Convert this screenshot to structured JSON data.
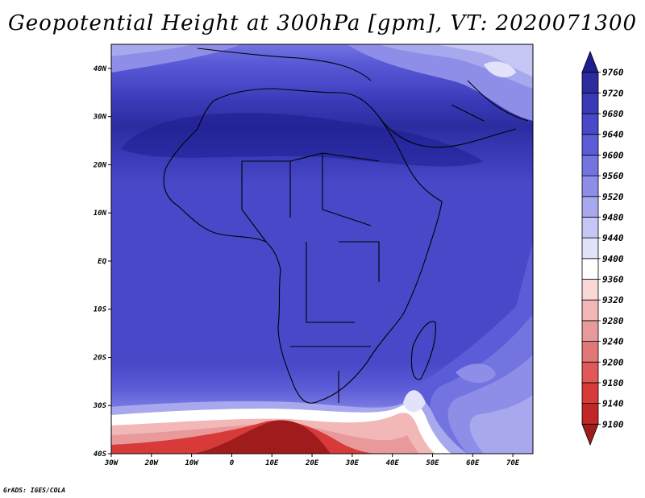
{
  "title": "Geopotential Height at 300hPa [gpm], VT: 2020071300",
  "credit": "GrADS: IGES/COLA",
  "map": {
    "lon_labels": [
      "30W",
      "20W",
      "10W",
      "0",
      "10E",
      "20E",
      "30E",
      "40E",
      "50E",
      "60E",
      "70E"
    ],
    "lat_labels": [
      "40S",
      "30S",
      "20S",
      "10S",
      "EQ",
      "10N",
      "20N",
      "30N",
      "40N"
    ],
    "lon_range": [
      -30,
      75
    ],
    "lat_range": [
      -40,
      45
    ]
  },
  "colorbar": {
    "unit": "gpm",
    "levels": [
      9100,
      9140,
      9180,
      9200,
      9240,
      9280,
      9320,
      9360,
      9400,
      9440,
      9480,
      9520,
      9560,
      9600,
      9640,
      9680,
      9720,
      9760
    ],
    "colors": [
      "#a01c1c",
      "#c02828",
      "#d83a3a",
      "#e05858",
      "#e07878",
      "#e89a9a",
      "#f2b8b8",
      "#fad8d8",
      "#ffffff",
      "#e2e2fa",
      "#c6c6f4",
      "#a8a8ee",
      "#8e8ee8",
      "#7474e0",
      "#5c5cd8",
      "#4848c8",
      "#3a3ab8",
      "#2c2ca0",
      "#1e1e90"
    ]
  }
}
